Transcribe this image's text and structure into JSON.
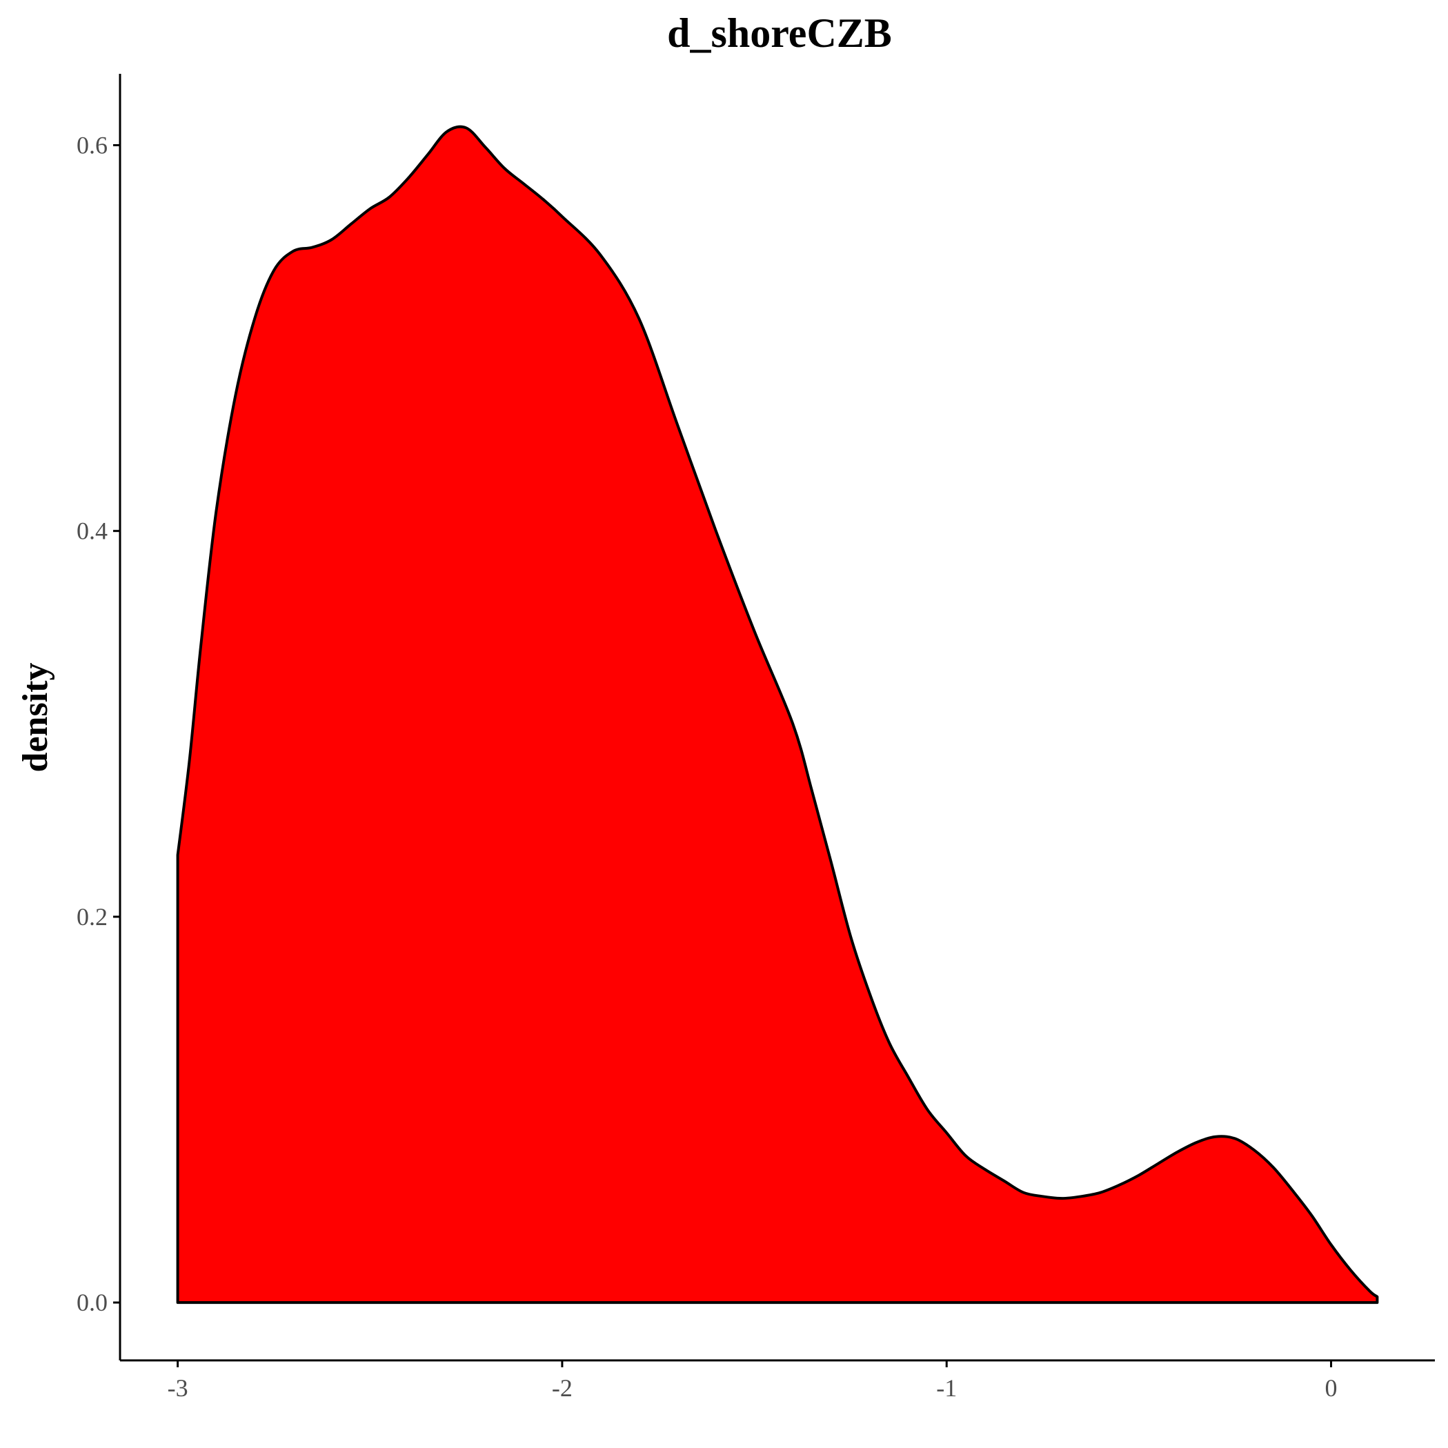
{
  "chart_data": {
    "type": "area",
    "title": "d_shoreCZB",
    "xlabel": "",
    "ylabel": "density",
    "xlim": [
      -3.15,
      0.27
    ],
    "ylim": [
      -0.03,
      0.637
    ],
    "x_ticks": [
      -3,
      -2,
      -1,
      0
    ],
    "x_tick_labels": [
      "-3",
      "-2",
      "-1",
      "0"
    ],
    "y_ticks": [
      0.0,
      0.2,
      0.4,
      0.6
    ],
    "y_tick_labels": [
      "0.0",
      "0.2",
      "0.4",
      "0.6"
    ],
    "grid": false,
    "legend": "none",
    "colors": {
      "fill": "#ff0000",
      "stroke": "#000000"
    },
    "series": [
      {
        "x": [
          -3.0,
          -2.97,
          -2.94,
          -2.9,
          -2.85,
          -2.8,
          -2.75,
          -2.7,
          -2.65,
          -2.6,
          -2.55,
          -2.5,
          -2.45,
          -2.4,
          -2.35,
          -2.3,
          -2.25,
          -2.2,
          -2.15,
          -2.1,
          -2.05,
          -2.0,
          -1.9,
          -1.8,
          -1.7,
          -1.6,
          -1.5,
          -1.4,
          -1.35,
          -1.3,
          -1.25,
          -1.2,
          -1.15,
          -1.1,
          -1.05,
          -1.0,
          -0.95,
          -0.9,
          -0.85,
          -0.8,
          -0.75,
          -0.7,
          -0.65,
          -0.6,
          -0.55,
          -0.5,
          -0.45,
          -0.4,
          -0.35,
          -0.3,
          -0.25,
          -0.2,
          -0.15,
          -0.1,
          -0.05,
          0.0,
          0.05,
          0.1,
          0.12
        ],
        "y": [
          0.232,
          0.28,
          0.34,
          0.41,
          0.47,
          0.51,
          0.535,
          0.545,
          0.547,
          0.551,
          0.559,
          0.567,
          0.573,
          0.583,
          0.595,
          0.607,
          0.609,
          0.599,
          0.588,
          0.58,
          0.572,
          0.563,
          0.543,
          0.51,
          0.455,
          0.4,
          0.348,
          0.3,
          0.265,
          0.228,
          0.19,
          0.16,
          0.135,
          0.117,
          0.1,
          0.088,
          0.076,
          0.069,
          0.063,
          0.057,
          0.055,
          0.054,
          0.055,
          0.057,
          0.061,
          0.066,
          0.072,
          0.078,
          0.083,
          0.086,
          0.085,
          0.079,
          0.07,
          0.058,
          0.045,
          0.03,
          0.017,
          0.006,
          0.003
        ]
      }
    ]
  }
}
